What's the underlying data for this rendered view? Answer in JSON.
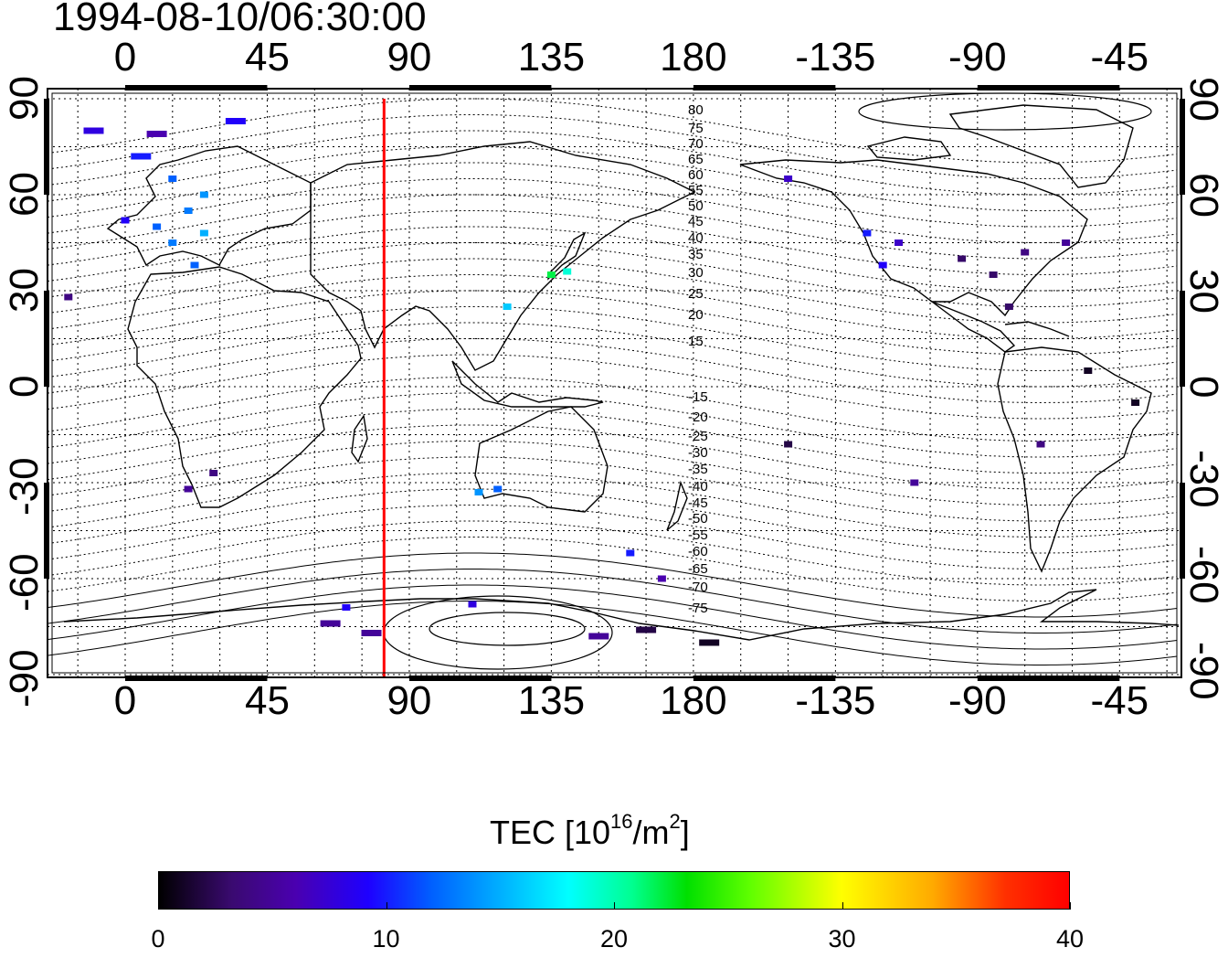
{
  "title": "1994-08-10/06:30:00",
  "map": {
    "x_ticks_top": [
      "0",
      "45",
      "90",
      "135",
      "180",
      "-135",
      "-90",
      "-45"
    ],
    "x_ticks_bottom": [
      "0",
      "45",
      "90",
      "135",
      "180",
      "-135",
      "-90",
      "-45"
    ],
    "y_ticks_left": [
      "90",
      "60",
      "30",
      "0",
      "-30",
      "-60",
      "-90"
    ],
    "y_ticks_right": [
      "90",
      "60",
      "30",
      "0",
      "-30",
      "-60",
      "-90"
    ],
    "contour_labels": [
      "80",
      "75",
      "70",
      "65",
      "60",
      "55",
      "50",
      "45",
      "40",
      "35",
      "30",
      "25",
      "20",
      "15",
      "-15",
      "-20",
      "-25",
      "-30",
      "-35",
      "-40",
      "-45",
      "-50",
      "-55",
      "-60",
      "-65",
      "-70",
      "-75"
    ],
    "terminator_longitude": 82,
    "terminator_color": "#ff0000",
    "tec_observations": [
      {
        "lon": -10,
        "lat": 80,
        "tec": 8
      },
      {
        "lon": 10,
        "lat": 79,
        "tec": 6
      },
      {
        "lon": 35,
        "lat": 83,
        "tec": 9
      },
      {
        "lon": 5,
        "lat": 72,
        "tec": 10
      },
      {
        "lon": 15,
        "lat": 65,
        "tec": 12
      },
      {
        "lon": 25,
        "lat": 60,
        "tec": 14
      },
      {
        "lon": 20,
        "lat": 55,
        "tec": 13
      },
      {
        "lon": 10,
        "lat": 50,
        "tec": 12
      },
      {
        "lon": 0,
        "lat": 52,
        "tec": 9
      },
      {
        "lon": 15,
        "lat": 45,
        "tec": 13
      },
      {
        "lon": 25,
        "lat": 48,
        "tec": 15
      },
      {
        "lon": 22,
        "lat": 38,
        "tec": 12
      },
      {
        "lon": -18,
        "lat": 28,
        "tec": 4
      },
      {
        "lon": 28,
        "lat": -27,
        "tec": 4
      },
      {
        "lon": 20,
        "lat": -32,
        "tec": 5
      },
      {
        "lon": 140,
        "lat": 36,
        "tec": 19
      },
      {
        "lon": 135,
        "lat": 35,
        "tec": 22
      },
      {
        "lon": 121,
        "lat": 25,
        "tec": 16
      },
      {
        "lon": 118,
        "lat": -32,
        "tec": 12
      },
      {
        "lon": 112,
        "lat": -33,
        "tec": 14
      },
      {
        "lon": 160,
        "lat": -52,
        "tec": 10
      },
      {
        "lon": 170,
        "lat": -60,
        "tec": 6
      },
      {
        "lon": 70,
        "lat": -69,
        "tec": 9
      },
      {
        "lon": 65,
        "lat": -74,
        "tec": 5
      },
      {
        "lon": 78,
        "lat": -77,
        "tec": 5
      },
      {
        "lon": 110,
        "lat": -68,
        "tec": 8
      },
      {
        "lon": 150,
        "lat": -78,
        "tec": 5
      },
      {
        "lon": 165,
        "lat": -76,
        "tec": 2
      },
      {
        "lon": 185,
        "lat": -80,
        "tec": 1
      },
      {
        "lon": -150,
        "lat": 65,
        "tec": 7
      },
      {
        "lon": -125,
        "lat": 48,
        "tec": 10
      },
      {
        "lon": -120,
        "lat": 38,
        "tec": 9
      },
      {
        "lon": -115,
        "lat": 45,
        "tec": 7
      },
      {
        "lon": -95,
        "lat": 40,
        "tec": 3
      },
      {
        "lon": -85,
        "lat": 35,
        "tec": 3
      },
      {
        "lon": -75,
        "lat": 42,
        "tec": 4
      },
      {
        "lon": -62,
        "lat": 45,
        "tec": 5
      },
      {
        "lon": -80,
        "lat": 25,
        "tec": 3
      },
      {
        "lon": -55,
        "lat": 5,
        "tec": 1
      },
      {
        "lon": -40,
        "lat": -5,
        "tec": 1
      },
      {
        "lon": -70,
        "lat": -18,
        "tec": 4
      },
      {
        "lon": -150,
        "lat": -18,
        "tec": 2
      },
      {
        "lon": -110,
        "lat": -30,
        "tec": 5
      }
    ]
  },
  "colorbar": {
    "title": "TEC  [10",
    "title_sup": "16",
    "title_unit": "/m",
    "title_sup2": "2",
    "title_end": "]",
    "tick_labels": [
      "0",
      "10",
      "20",
      "30",
      "40"
    ],
    "range": [
      0,
      40
    ]
  }
}
